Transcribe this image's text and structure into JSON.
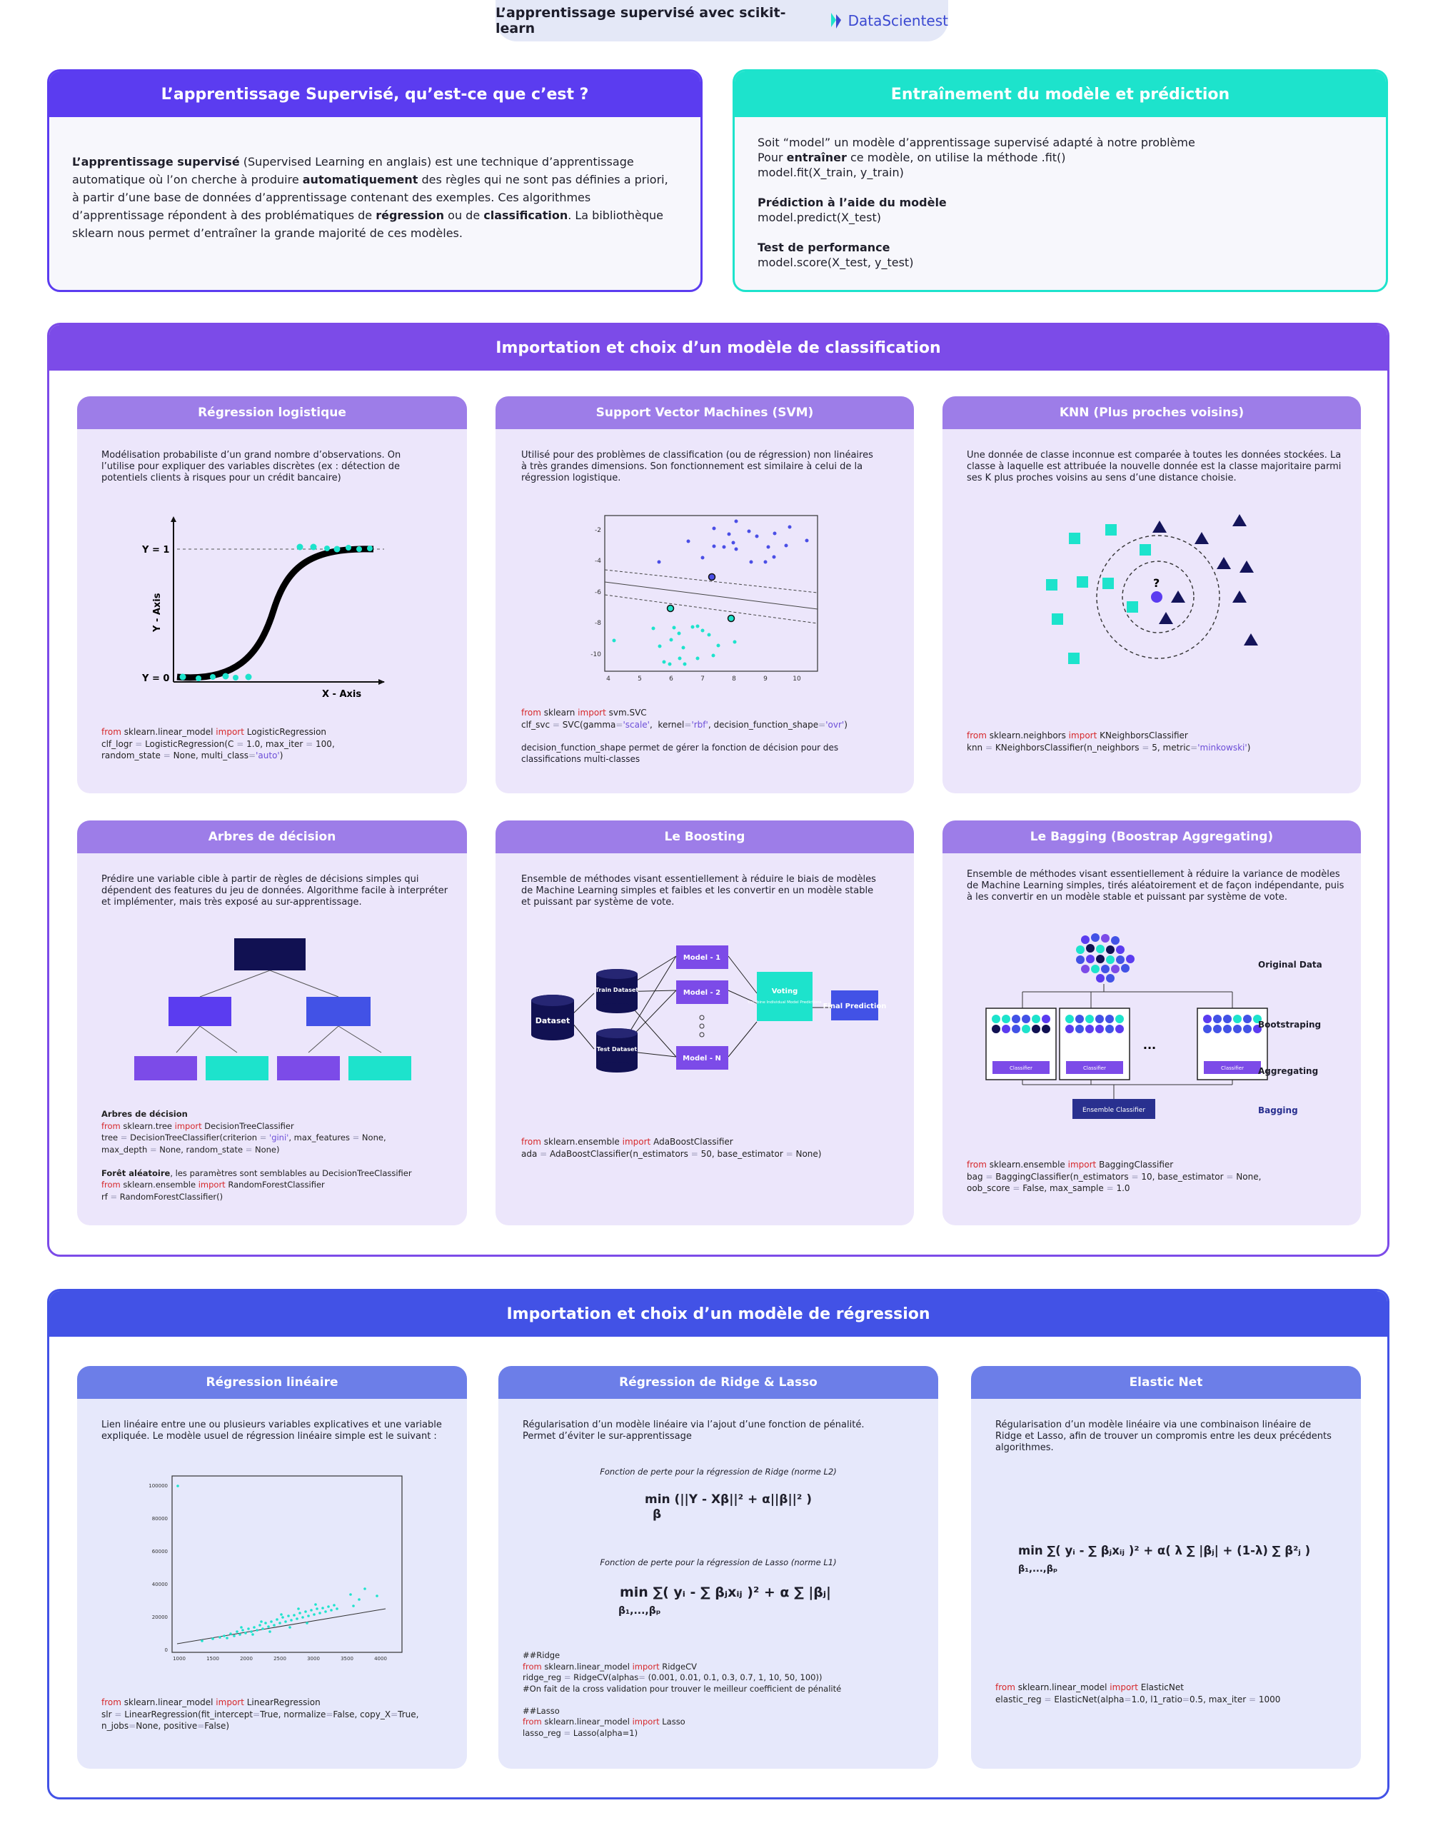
{
  "header": {
    "title": "L’apprentissage supervisé avec scikit-learn",
    "brand": "DataScientest"
  },
  "colors": {
    "purple": "#5b3cf0",
    "teal": "#1de3cc",
    "violet": "#7c4be8",
    "blue": "#4252e6"
  },
  "intro": {
    "title": "L’apprentissage Supervisé, qu’est-ce que c’est ?",
    "p1": "L’apprentissage supervisé",
    "p2": " (Supervised Learning en anglais) est une technique d’apprentissage automatique où l’on cherche à produire ",
    "p3": "automatiquement",
    "p4": " des règles qui ne sont pas définies a priori, à partir d’une base de données d’apprentissage contenant des exemples. Ces algorithmes d’apprentissage répondent à des problématiques de ",
    "p5": "régression",
    "p6": " ou de ",
    "p7": "classification",
    "p8": ". La bibliothèque sklearn nous permet d’entraîner la grande majorité de ces modèles."
  },
  "training": {
    "title": "Entraînement du modèle et prédiction",
    "l1": "Soit “model” un modèle d’apprentissage supervisé adapté à notre problème",
    "l2a": "Pour ",
    "l2b": "entraîner",
    "l2c": " ce modèle, on utilise la méthode .fit()",
    "l3": "model.fit(X_train, y_train)",
    "h2": "Prédiction à l’aide du modèle",
    "l4": "model.predict(X_test)",
    "h3": "Test de performance",
    "l5": "model.score(X_test, y_test)"
  },
  "classification": {
    "title": "Importation et choix d’un modèle de classification",
    "logreg": {
      "title": "Régression logistique",
      "text": "Modélisation probabiliste d’un grand nombre d’observations. On l’utilise pour expliquer des variables discrètes (ex : détection de potentiels clients à risques pour un crédit bancaire)",
      "y1": "Y = 1",
      "y0": "Y = 0",
      "xaxis": "X - Axis",
      "yaxis": "Y - Axis",
      "c1": "from",
      "c2": " sklearn.linear_model ",
      "c3": "import",
      "c4": " LogisticRegression",
      "c5": "clf_logr ",
      "c6": "=",
      "c7": " LogisticRegression(C ",
      "c8": "=",
      "c9": " 1.0, max_iter ",
      "c10": "=",
      "c11": " 100,",
      "c12": "random_state ",
      "c13": "=",
      "c14": " None, multi_class",
      "c15": "=",
      "c16": "'auto'",
      "c17": ")"
    },
    "svm": {
      "title": "Support Vector Machines (SVM)",
      "text": "Utilisé pour des problèmes de classification (ou de régression) non linéaires à très grandes dimensions. Son fonctionnement est similaire à celui de la régression logistique.",
      "yticks": [
        "-2",
        "-4",
        "-6",
        "-8",
        "-10"
      ],
      "xticks": [
        "4",
        "5",
        "6",
        "7",
        "8",
        "9",
        "10"
      ],
      "c1": "from",
      "c2": " sklearn ",
      "c3": "import",
      "c4": " svm.SVC",
      "c5": "clf_svc ",
      "c6": "=",
      "c7": " SVC(gamma",
      "c8": "=",
      "c9": "'scale'",
      "c10": ",  kernel",
      "c11": "=",
      "c12": "'rbf'",
      "c13": ", decision_function_shape",
      "c14": "=",
      "c15": "'ovr'",
      "c16": ")",
      "note": "decision_function_shape permet de gérer la fonction de décision pour des classifications multi-classes"
    },
    "knn": {
      "title": "KNN (Plus proches voisins)",
      "text": "Une donnée de classe inconnue est comparée à toutes les données stockées. La classe à laquelle est attribuée la nouvelle donnée est la classe majoritaire parmi ses K plus proches voisins au sens d’une distance choisie.",
      "q": "?",
      "c1": "from",
      "c2": " sklearn.neighbors ",
      "c3": "import",
      "c4": " KNeighborsClassifier",
      "c5": "knn ",
      "c6": "=",
      "c7": " KNeighborsClassifier(n_neighbors ",
      "c8": "=",
      "c9": " 5, metric",
      "c10": "=",
      "c11": "'minkowski'",
      "c12": ")"
    },
    "tree": {
      "title": "Arbres de décision",
      "text": "Prédire une variable cible à partir de règles de décisions simples qui dépendent des features du jeu de données. Algorithme facile à interpréter et implémenter, mais très exposé au sur-apprentissage.",
      "h1": "Arbres de décision",
      "c1": "from",
      "c2": " sklearn.tree ",
      "c3": "import",
      "c4": " DecisionTreeClassifier",
      "c5": "tree ",
      "c6": "=",
      "c7": " DecisionTreeClassifier(criterion ",
      "c8": "=",
      "c9": " 'gini'",
      "c10": ", max_features ",
      "c11": "=",
      "c12": " None,",
      "c13": "max_depth ",
      "c14": "=",
      "c15": " None, random_state ",
      "c16": "=",
      "c17": " None)",
      "h2": "Forêt aléatoire",
      "h2b": ", les paramètres sont semblables au DecisionTreeClassifier",
      "c18": "from",
      "c19": " sklearn.ensemble ",
      "c20": "import",
      "c21": " RandomForestClassifier",
      "c22": "rf ",
      "c23": "=",
      "c24": " RandomForestClassifier()"
    },
    "boost": {
      "title": "Le Boosting",
      "text": "Ensemble de méthodes visant essentiellement à réduire le biais de modèles de Machine Learning simples et faibles et les convertir en un modèle stable et puissant par système de vote.",
      "dataset": "Dataset",
      "train": "Train Dataset",
      "test": "Test Dataset",
      "m1": "Model - 1",
      "m2": "Model - 2",
      "mn": "Model - N",
      "voting": "Voting",
      "voting_sub": "Combine Individual Model Predictions",
      "final": "Final Prediction",
      "c1": "from",
      "c2": " sklearn.ensemble ",
      "c3": "import",
      "c4": " AdaBoostClassifier",
      "c5": "ada ",
      "c6": "=",
      "c7": " AdaBoostClassifier(n_estimators ",
      "c8": "=",
      "c9": " 50, base_estimator ",
      "c10": "=",
      "c11": " None)"
    },
    "bag": {
      "title": "Le Bagging (Boostrap Aggregating)",
      "text": "Ensemble de méthodes visant essentiellement à réduire la variance de modèles de Machine Learning simples, tirés aléatoirement et de façon indépendante, puis à les convertir en un modèle stable et puissant par système de vote.",
      "orig": "Original Data",
      "boot": "Bootstraping",
      "agg": "Aggregating",
      "bagging": "Bagging",
      "classifier": "Classifier",
      "ellipsis": "...",
      "ensemble": "Ensemble Classifier",
      "c1": "from",
      "c2": " sklearn.ensemble ",
      "c3": "import",
      "c4": " BaggingClassifier",
      "c5": "bag ",
      "c6": "=",
      "c7": " BaggingClassifier(n_estimators ",
      "c8": "=",
      "c9": " 10, base_estimator ",
      "c10": "=",
      "c11": " None,",
      "c12": "oob_score ",
      "c13": "=",
      "c14": " False, max_sample ",
      "c15": "=",
      "c16": " 1.0"
    }
  },
  "regression": {
    "title": "Importation et choix d’un modèle de régression",
    "lin": {
      "title": "Régression linéaire",
      "text": "Lien linéaire entre une ou plusieurs variables explicatives et une variable expliquée. Le modèle usuel de régression linéaire simple est le suivant :",
      "yticks": [
        "100000",
        "80000",
        "60000",
        "40000",
        "20000",
        "0"
      ],
      "xticks": [
        "1000",
        "1500",
        "2000",
        "2500",
        "3000",
        "3500",
        "4000"
      ],
      "c1": "from",
      "c2": " sklearn.linear_model ",
      "c3": "import",
      "c4": " LinearRegression",
      "c5": "slr ",
      "c6": "=",
      "c7": " LinearRegression(fit_intercept",
      "c8": "=",
      "c9": "True, normalize",
      "c10": "=",
      "c11": "False, copy_X",
      "c12": "=",
      "c13": "True,",
      "c14": "n_jobs",
      "c15": "=",
      "c16": "None, positive",
      "c17": "=",
      "c18": "False)"
    },
    "ridge": {
      "title": "Régression de Ridge & Lasso",
      "text": "Régularisation d’un modèle linéaire via l’ajout d’une fonction de pénalité. Permet d’éviter le sur-apprentissage",
      "f1cap": "Fonction de perte pour la régression de Ridge (norme L2)",
      "f1": "min (||Y - Xβ||² + α||β||² )",
      "f1sub": "β",
      "f2cap": "Fonction de perte pour la régression de Lasso (norme L1)",
      "f2": "min ∑( yᵢ - ∑ βⱼxᵢⱼ )² + α ∑ |βⱼ|",
      "f2sub": "β₁,...,βₚ",
      "c0": "##Ridge",
      "c1": "from",
      "c2": " sklearn.linear_model ",
      "c3": "import",
      "c4": " RidgeCV",
      "c5": "ridge_reg ",
      "c6": "=",
      "c7": " RidgeCV(alphas",
      "c8": "=",
      "c9": " (0.001, 0.01, 0.1, 0.3, 0.7, 1, 10, 50, 100))",
      "c10": "#On fait de la cross validation pour trouver le meilleur coefficient de pénalité",
      "c11": "##Lasso",
      "c12": "from",
      "c13": " sklearn.linear_model ",
      "c14": "import",
      "c15": " Lasso",
      "c16": "lasso_reg ",
      "c17": "=",
      "c18": " Lasso(alpha=1)"
    },
    "elastic": {
      "title": "Elastic Net",
      "text": "Régularisation d’un modèle linéaire via une combinaison linéaire de Ridge et Lasso, afin de trouver un compromis entre les deux précédents algorithmes.",
      "f": "min ∑( yᵢ - ∑ βⱼxᵢⱼ )² + α( λ ∑ |βⱼ| + (1-λ) ∑ β²ⱼ )",
      "fsub": "β₁,...,βₚ",
      "c1": "from",
      "c2": " sklearn.linear_model ",
      "c3": "import",
      "c4": " ElasticNet",
      "c5": "elastic_reg ",
      "c6": "=",
      "c7": " ElasticNet(alpha",
      "c8": "=",
      "c9": "1.0, l1_ratio",
      "c10": "=",
      "c11": "0.5, max_iter ",
      "c12": "=",
      "c13": " 1000"
    }
  }
}
